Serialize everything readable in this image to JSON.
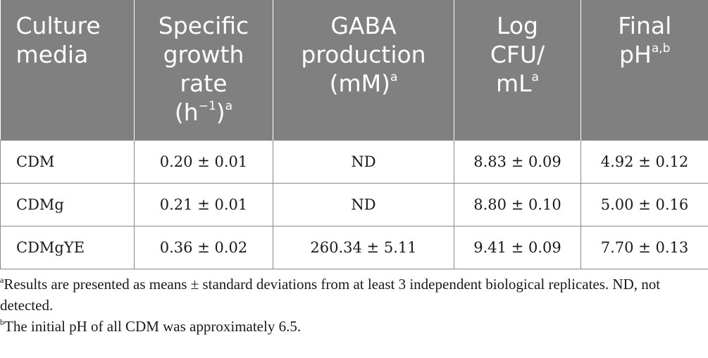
{
  "header": {
    "media": [
      "Culture",
      "media"
    ],
    "growth": [
      "Specific",
      "growth",
      "rate"
    ],
    "growth_unit": "(h",
    "growth_exp": "−1",
    "growth_close": ")",
    "growth_sup": "a",
    "gaba": [
      "GABA",
      "production"
    ],
    "gaba_unit": "(mM)",
    "gaba_sup": "a",
    "cfu": [
      "Log",
      "CFU/"
    ],
    "cfu_unit": "mL",
    "cfu_sup": "a",
    "ph": [
      "Final"
    ],
    "ph_unit": "pH",
    "ph_sup": "a,b"
  },
  "rows": [
    {
      "media": "CDM",
      "growth": "0.20 ± 0.01",
      "gaba": "ND",
      "cfu": "8.83 ± 0.09",
      "ph": "4.92 ± 0.12"
    },
    {
      "media": "CDMg",
      "growth": "0.21 ± 0.01",
      "gaba": "ND",
      "cfu": "8.80 ± 0.10",
      "ph": "5.00 ± 0.16"
    },
    {
      "media": "CDMgYE",
      "growth": "0.36 ± 0.02",
      "gaba": "260.34 ± 5.11",
      "cfu": "9.41 ± 0.09",
      "ph": "7.70 ± 0.13"
    }
  ],
  "footnotes": {
    "a_mark": "a",
    "a_text": "Results are presented as means ± standard deviations from at least 3 independent biological replicates. ND, not detected.",
    "b_mark": "b",
    "b_text": "The initial pH of all CDM was approximately 6.5."
  }
}
